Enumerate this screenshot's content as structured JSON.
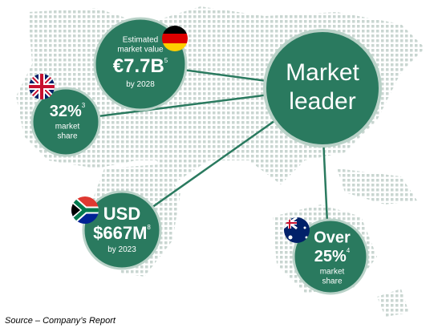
{
  "hub": {
    "lines": [
      "Market",
      "leader"
    ]
  },
  "nodes": [
    {
      "lines": [
        "Estimated",
        "market value"
      ],
      "value": "€7.7B",
      "note": "5",
      "after": [
        "by 2028"
      ]
    },
    {
      "lines": [],
      "value": "32%",
      "note": "3",
      "after": [
        "market",
        "share"
      ]
    },
    {
      "lines": [
        "USD"
      ],
      "value": "$667M",
      "note": "8",
      "after": [
        "by 2023"
      ]
    },
    {
      "lines": [
        "Over"
      ],
      "value": "25%",
      "note": "4",
      "after": [
        "market",
        "share"
      ]
    }
  ],
  "source": "Source – Company’s Report"
}
